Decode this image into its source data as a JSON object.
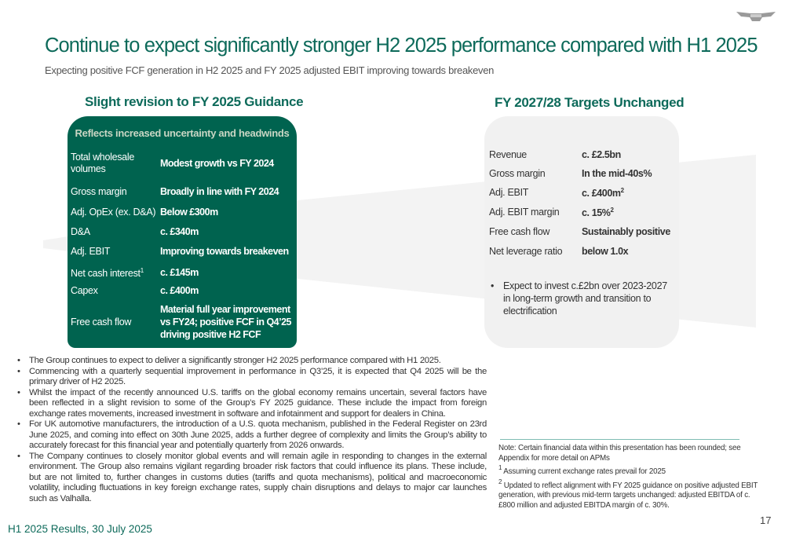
{
  "title": "Continue to expect significantly stronger H2 2025 performance compared with H1 2025",
  "subtitle": "Expecting positive FCF generation in H2 2025 and FY 2025 adjusted EBIT improving towards breakeven",
  "guidance": {
    "heading": "Slight revision to FY 2025 Guidance",
    "box_header": "Reflects increased uncertainty and headwinds",
    "rows": [
      {
        "label": "Total wholesale volumes",
        "value": "Modest growth vs FY 2024"
      },
      {
        "label": "Gross margin",
        "value": "Broadly in line with FY 2024"
      },
      {
        "label": "Adj. OpEx (ex. D&A)",
        "value": "Below £300m"
      },
      {
        "label": "D&A",
        "value": "c. £340m"
      },
      {
        "label": "Adj. EBIT",
        "value": "Improving towards breakeven"
      },
      {
        "label": "Net cash interest",
        "sup": "1",
        "value": "c. £145m"
      },
      {
        "label": "Capex",
        "value": "c. £400m"
      },
      {
        "label": "Free cash flow",
        "value": "Material full year improvement vs FY24; positive FCF in Q4’25 driving positive H2 FCF"
      }
    ],
    "colors": {
      "box": "#00634f",
      "accent": "#0d6a5a"
    }
  },
  "targets": {
    "heading": "FY 2027/28 Targets Unchanged",
    "rows": [
      {
        "label": "Revenue",
        "value": "c. £2.5bn"
      },
      {
        "label": "Gross margin",
        "value": "In the mid-40s%"
      },
      {
        "label": "Adj. EBIT",
        "value": "c. £400m",
        "sup": "2"
      },
      {
        "label": "Adj. EBIT margin",
        "value": "c. 15%",
        "sup": "2"
      },
      {
        "label": "Free cash flow",
        "value": "Sustainably positive"
      },
      {
        "label": "Net leverage ratio",
        "value": "below 1.0x"
      }
    ],
    "bullet": "Expect to invest c.£2bn over 2023-2027 in long-term growth and transition to electrification"
  },
  "bullets": [
    "The Group continues to expect to deliver a significantly stronger H2 2025 performance compared with H1 2025.",
    "Commencing with a quarterly sequential improvement in performance in Q3’25, it is expected that Q4 2025 will be the primary driver of H2 2025.",
    "Whilst the impact of the recently announced U.S. tariffs on the global economy remains uncertain, several factors have been reflected in a slight revision to some of the Group’s FY 2025 guidance. These include the impact from foreign exchange rates movements, increased investment in software and infotainment and support for dealers in China.",
    "For UK automotive manufacturers, the introduction of a U.S. quota mechanism, published in the Federal Register on 23rd June 2025, and coming into effect on 30th June 2025, adds a further degree of complexity and limits the Group’s ability to accurately forecast for this financial year and potentially quarterly from 2026 onwards.",
    "The Company continues to closely monitor global events and will remain agile in responding to changes in the external environment. The Group also remains vigilant regarding broader risk factors that could influence its plans. These include, but are not limited to, further changes in customs duties (tariffs and quota mechanisms), political and macroeconomic volatility, including fluctuations in key foreign exchange rates, supply chain disruptions and delays to major car launches such as Valhalla."
  ],
  "notes": {
    "note": "Note: Certain financial data within this presentation has been rounded; see Appendix for more detail on APMs",
    "fn1_mark": "1",
    "fn1": "Assuming current exchange rates prevail for 2025",
    "fn2_mark": "2",
    "fn2": "Updated to reflect alignment with FY 2025 guidance on positive adjusted EBIT generation, with previous mid-term targets unchanged: adjusted EBITDA of c. £800 million and adjusted EBITDA margin of c. 30%."
  },
  "footer": "H1 2025 Results, 30 July 2025",
  "page_number": "17",
  "logo": "aston-martin-wings-logo"
}
